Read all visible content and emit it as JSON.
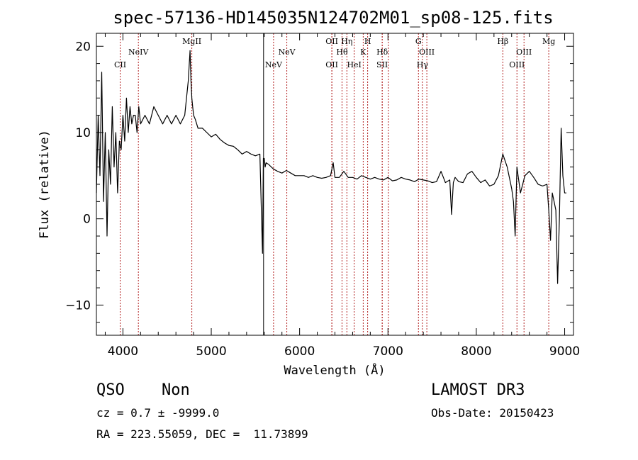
{
  "chart_data": {
    "type": "line",
    "title": "spec-57136-HD145035N124702M01_sp08-125.fits",
    "xlabel": "Wavelength (Å)",
    "ylabel": "Flux (relative)",
    "xlim": [
      3700,
      9100
    ],
    "ylim": [
      -13.5,
      21.5
    ],
    "xticks": [
      4000,
      5000,
      6000,
      7000,
      8000,
      9000
    ],
    "yticks": [
      -10,
      0,
      10,
      20
    ],
    "series": [
      {
        "name": "spectrum",
        "x": [
          3700,
          3720,
          3740,
          3760,
          3780,
          3800,
          3820,
          3840,
          3860,
          3880,
          3900,
          3920,
          3940,
          3960,
          3980,
          4000,
          4020,
          4040,
          4060,
          4080,
          4100,
          4120,
          4140,
          4160,
          4180,
          4200,
          4250,
          4300,
          4350,
          4400,
          4450,
          4500,
          4550,
          4600,
          4650,
          4700,
          4720,
          4740,
          4760,
          4770,
          4780,
          4790,
          4800,
          4820,
          4850,
          4900,
          4950,
          5000,
          5050,
          5100,
          5150,
          5200,
          5250,
          5300,
          5350,
          5400,
          5450,
          5500,
          5550,
          5580,
          5590,
          5600,
          5610,
          5620,
          5650,
          5700,
          5750,
          5800,
          5850,
          5900,
          5950,
          6000,
          6050,
          6100,
          6150,
          6200,
          6250,
          6300,
          6350,
          6380,
          6400,
          6450,
          6500,
          6550,
          6600,
          6650,
          6700,
          6750,
          6800,
          6850,
          6900,
          6950,
          7000,
          7050,
          7100,
          7150,
          7200,
          7250,
          7300,
          7350,
          7400,
          7450,
          7500,
          7550,
          7600,
          7650,
          7700,
          7720,
          7740,
          7760,
          7800,
          7850,
          7900,
          7950,
          8000,
          8050,
          8100,
          8150,
          8200,
          8250,
          8280,
          8300,
          8350,
          8400,
          8420,
          8440,
          8460,
          8500,
          8550,
          8600,
          8650,
          8700,
          8750,
          8800,
          8820,
          8840,
          8860,
          8880,
          8900,
          8920,
          8940,
          8960,
          8980,
          9000,
          9020
        ],
        "values": [
          3,
          12,
          5,
          17,
          2,
          10,
          -2,
          8,
          4,
          13,
          6,
          10,
          3,
          9,
          8,
          12,
          9,
          14,
          10,
          13,
          11,
          12,
          12,
          10,
          13,
          11,
          12,
          11,
          13,
          12,
          11,
          12,
          11,
          12,
          11,
          12,
          14,
          16,
          19.5,
          16,
          14,
          13,
          12,
          11.5,
          10.5,
          10.5,
          10,
          9.5,
          9.8,
          9.2,
          8.8,
          8.5,
          8.4,
          8,
          7.5,
          7.8,
          7.5,
          7.3,
          7.5,
          -4,
          7,
          7,
          6,
          6.5,
          6.3,
          5.8,
          5.5,
          5.3,
          5.6,
          5.3,
          5,
          5,
          5,
          4.8,
          5,
          4.8,
          4.7,
          4.8,
          5,
          6.5,
          4.8,
          4.8,
          5.5,
          4.8,
          4.8,
          4.6,
          5,
          4.8,
          4.6,
          4.8,
          4.6,
          4.5,
          4.8,
          4.4,
          4.5,
          4.8,
          4.6,
          4.5,
          4.3,
          4.6,
          4.5,
          4.4,
          4.2,
          4.3,
          5.5,
          4.2,
          4.5,
          0.5,
          4.2,
          4.8,
          4.3,
          4.2,
          5.2,
          5.5,
          4.8,
          4.2,
          4.5,
          3.8,
          4,
          5,
          6.5,
          7.5,
          6,
          3.5,
          2,
          -2,
          6,
          3,
          5,
          5.5,
          4.8,
          4,
          3.8,
          4,
          1,
          -2.5,
          3,
          2,
          1,
          -7.5,
          0,
          10.5,
          5,
          3,
          3
        ]
      }
    ],
    "vertical_lines": [
      {
        "x": 3969,
        "label": "CII",
        "row": 3,
        "style": "dotted"
      },
      {
        "x": 4175,
        "label": "NeIV",
        "row": 2,
        "style": "dotted"
      },
      {
        "x": 4780,
        "label": "MgII",
        "row": 1,
        "style": "dotted"
      },
      {
        "x": 5592,
        "label": "",
        "row": 0,
        "style": "solid"
      },
      {
        "x": 5705,
        "label": "NeV",
        "row": 3,
        "style": "dotted"
      },
      {
        "x": 5855,
        "label": "NeV",
        "row": 2,
        "style": "dotted"
      },
      {
        "x": 6365,
        "label": "OII",
        "row": 1,
        "style": "dotted"
      },
      {
        "x": 6365,
        "label": "OII",
        "row": 3,
        "style": "dotted"
      },
      {
        "x": 6480,
        "label": "Hθ",
        "row": 2,
        "style": "dotted"
      },
      {
        "x": 6535,
        "label": "Hη",
        "row": 1,
        "style": "dotted"
      },
      {
        "x": 6618,
        "label": "HeI",
        "row": 3,
        "style": "dotted"
      },
      {
        "x": 6720,
        "label": "K",
        "row": 2,
        "style": "dotted"
      },
      {
        "x": 6770,
        "label": "H",
        "row": 1,
        "style": "dotted"
      },
      {
        "x": 6935,
        "label": "Hδ",
        "row": 2,
        "style": "dotted"
      },
      {
        "x": 6935,
        "label": "SII",
        "row": 3,
        "style": "dotted"
      },
      {
        "x": 7005,
        "label": "",
        "row": 0,
        "style": "dotted"
      },
      {
        "x": 7345,
        "label": "G",
        "row": 1,
        "style": "dotted"
      },
      {
        "x": 7390,
        "label": "Hγ",
        "row": 3,
        "style": "dotted"
      },
      {
        "x": 7440,
        "label": "OIII",
        "row": 2,
        "style": "dotted"
      },
      {
        "x": 8300,
        "label": "Hβ",
        "row": 1,
        "style": "dotted"
      },
      {
        "x": 8460,
        "label": "OIII",
        "row": 3,
        "style": "dotted"
      },
      {
        "x": 8540,
        "label": "OIII",
        "row": 2,
        "style": "dotted"
      },
      {
        "x": 8820,
        "label": "Mg",
        "row": 1,
        "style": "dotted"
      }
    ]
  },
  "footer": {
    "class_label": "QSO",
    "subclass_label": "Non",
    "survey": "LAMOST DR3",
    "cz_text": "cz = 0.7 ± -9999.0",
    "obs_date": "Obs-Date: 20150423",
    "radec_text": "RA = 223.55059, DEC =  11.73899"
  },
  "colors": {
    "spectrum": "#000000",
    "line_markers": "#b22222",
    "axes": "#000000"
  }
}
